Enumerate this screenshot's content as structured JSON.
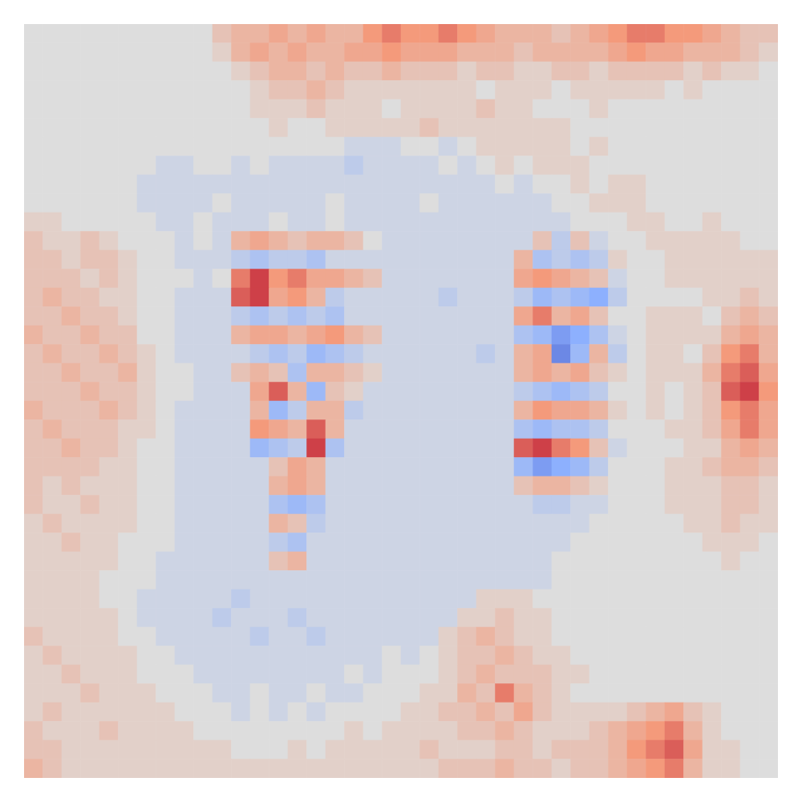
{
  "chart_data": {
    "type": "heatmap",
    "vlim": [
      -10,
      10
    ],
    "tick_labels": false,
    "values": [
      [
        0,
        0,
        0,
        0,
        0,
        0,
        0,
        0,
        0,
        0,
        2,
        3,
        3,
        4,
        3,
        4,
        3,
        3,
        5,
        6,
        5,
        5,
        6,
        5,
        4,
        3,
        3,
        3,
        2,
        3,
        4,
        5,
        6,
        6,
        5,
        5,
        4,
        3,
        2,
        2
      ],
      [
        0,
        0,
        0,
        0,
        0,
        0,
        0,
        0,
        0,
        0,
        1,
        3,
        4,
        3,
        4,
        3,
        3,
        4,
        4,
        5,
        4,
        4,
        4,
        3,
        3,
        3,
        2,
        3,
        3,
        3,
        3,
        4,
        5,
        4,
        4,
        3,
        3,
        3,
        2,
        1
      ],
      [
        0,
        0,
        0,
        0,
        0,
        0,
        0,
        0,
        0,
        0,
        0,
        1,
        2,
        3,
        3,
        2,
        3,
        2,
        2,
        3,
        2,
        2,
        2,
        1,
        2,
        2,
        1,
        1,
        2,
        2,
        1,
        2,
        2,
        2,
        2,
        1,
        2,
        1,
        1,
        0
      ],
      [
        0,
        0,
        0,
        0,
        0,
        0,
        0,
        0,
        0,
        0,
        0,
        0,
        1,
        2,
        2,
        3,
        2,
        1,
        1,
        1,
        1,
        1,
        1,
        1,
        0,
        1,
        1,
        1,
        0,
        1,
        1,
        1,
        1,
        1,
        0,
        1,
        0,
        0,
        0,
        0
      ],
      [
        0,
        0,
        0,
        0,
        0,
        0,
        0,
        0,
        0,
        0,
        0,
        0,
        1,
        1,
        1,
        2,
        1,
        1,
        1,
        0,
        1,
        1,
        1,
        1,
        2,
        1,
        1,
        0,
        0,
        0,
        1,
        0,
        0,
        0,
        0,
        0,
        0,
        0,
        0,
        0
      ],
      [
        0,
        0,
        0,
        0,
        0,
        0,
        0,
        0,
        0,
        0,
        0,
        0,
        0,
        1,
        0,
        0,
        1,
        1,
        1,
        1,
        1,
        2,
        1,
        1,
        1,
        1,
        1,
        1,
        1,
        0,
        0,
        0,
        0,
        0,
        0,
        0,
        0,
        0,
        0,
        0
      ],
      [
        0,
        0,
        0,
        0,
        0,
        0,
        0,
        0,
        0,
        0,
        0,
        0,
        0,
        0,
        0,
        0,
        0,
        -1,
        -1,
        -1,
        0,
        0,
        -1,
        0,
        1,
        1,
        1,
        1,
        1,
        0,
        1,
        0,
        0,
        0,
        0,
        0,
        0,
        0,
        0,
        0
      ],
      [
        0,
        0,
        0,
        0,
        0,
        0,
        0,
        -1,
        -1,
        0,
        0,
        -1,
        0,
        -1,
        -1,
        -1,
        -1,
        -2,
        -1,
        -1,
        -1,
        -1,
        0,
        -1,
        0,
        1,
        0,
        1,
        1,
        1,
        0,
        0,
        0,
        0,
        0,
        0,
        0,
        0,
        0,
        0
      ],
      [
        0,
        0,
        0,
        0,
        0,
        0,
        -1,
        -1,
        -1,
        -1,
        -1,
        -1,
        -1,
        -1,
        -1,
        -1,
        -1,
        -1,
        -1,
        -1,
        -1,
        -1,
        -1,
        -1,
        -1,
        0,
        -1,
        0,
        0,
        1,
        0,
        1,
        1,
        0,
        0,
        0,
        0,
        0,
        0,
        0
      ],
      [
        0,
        0,
        0,
        0,
        0,
        0,
        -1,
        -1,
        -1,
        -1,
        0,
        -1,
        -1,
        -1,
        -1,
        -1,
        0,
        -1,
        -1,
        -1,
        -1,
        0,
        -1,
        -1,
        -1,
        -1,
        -1,
        -1,
        0,
        0,
        1,
        1,
        1,
        0,
        0,
        0,
        0,
        0,
        0,
        0
      ],
      [
        1,
        1,
        0,
        0,
        0,
        0,
        0,
        -1,
        -1,
        0,
        -1,
        -1,
        -1,
        0,
        -1,
        -1,
        0,
        -1,
        -1,
        -1,
        -1,
        -1,
        -1,
        -1,
        -1,
        -1,
        -1,
        -1,
        -1,
        0,
        0,
        0,
        1,
        1,
        0,
        0,
        1,
        0,
        0,
        0
      ],
      [
        2,
        1,
        1,
        2,
        1,
        0,
        0,
        0,
        -1,
        0,
        -1,
        3,
        4,
        3,
        2,
        3,
        3,
        2,
        0,
        -1,
        -1,
        -1,
        -1,
        -1,
        -1,
        -1,
        -1,
        2,
        -2,
        2,
        -1,
        0,
        0,
        1,
        1,
        1,
        1,
        1,
        0,
        0
      ],
      [
        2,
        2,
        1,
        2,
        2,
        1,
        0,
        0,
        -1,
        -1,
        -1,
        -2,
        -3,
        -2,
        -2,
        -3,
        -1,
        -1,
        -1,
        -1,
        -1,
        -1,
        -1,
        -1,
        -1,
        -1,
        3,
        -3,
        -2,
        -3,
        -2,
        1,
        0,
        0,
        1,
        1,
        1,
        1,
        1,
        1
      ],
      [
        2,
        2,
        2,
        1,
        2,
        1,
        0,
        0,
        0,
        -1,
        0,
        6,
        8,
        5,
        6,
        4,
        4,
        3,
        2,
        -1,
        -1,
        -1,
        -1,
        -1,
        -1,
        -1,
        4,
        5,
        4,
        3,
        2,
        -1,
        0,
        0,
        1,
        1,
        1,
        1,
        1,
        1
      ],
      [
        2,
        3,
        2,
        2,
        1,
        1,
        0,
        0,
        -1,
        -1,
        -1,
        7,
        8,
        4,
        5,
        3,
        -2,
        -1,
        -1,
        -1,
        -1,
        -1,
        -2,
        -1,
        -1,
        -1,
        -2,
        -4,
        -3,
        -4,
        -5,
        -2,
        0,
        0,
        0,
        0,
        1,
        1,
        2,
        1
      ],
      [
        2,
        2,
        3,
        2,
        2,
        1,
        0,
        0,
        -1,
        -1,
        -1,
        -2,
        -3,
        -2,
        -3,
        -2,
        -3,
        -1,
        -1,
        -1,
        -1,
        -1,
        -1,
        -1,
        -1,
        -1,
        4,
        6,
        3,
        4,
        2,
        0,
        0,
        1,
        1,
        1,
        0,
        2,
        3,
        2
      ],
      [
        3,
        2,
        2,
        3,
        2,
        2,
        0,
        0,
        -1,
        -1,
        -1,
        3,
        4,
        4,
        3,
        4,
        5,
        3,
        2,
        -1,
        -1,
        -1,
        -1,
        -1,
        -1,
        -1,
        -3,
        -4,
        -6,
        -5,
        -3,
        -1,
        0,
        1,
        1,
        1,
        1,
        3,
        4,
        3
      ],
      [
        2,
        3,
        2,
        2,
        3,
        2,
        1,
        0,
        -1,
        -1,
        -1,
        -1,
        -2,
        -3,
        -2,
        -4,
        -3,
        -2,
        -1,
        -1,
        -1,
        -1,
        -1,
        -1,
        -2,
        -1,
        3,
        4,
        -7,
        -4,
        3,
        -2,
        0,
        1,
        1,
        0,
        2,
        5,
        6,
        3
      ],
      [
        2,
        2,
        3,
        2,
        2,
        3,
        1,
        0,
        0,
        -1,
        -1,
        2,
        3,
        2,
        -3,
        3,
        3,
        2,
        1,
        -1,
        -1,
        -1,
        -1,
        -1,
        -1,
        -1,
        3,
        4,
        3,
        4,
        2,
        1,
        0,
        1,
        1,
        1,
        3,
        6,
        7,
        4
      ],
      [
        2,
        2,
        2,
        3,
        2,
        2,
        1,
        0,
        0,
        -1,
        -1,
        -1,
        4,
        7,
        3,
        -4,
        2,
        1,
        -1,
        -1,
        -1,
        -1,
        -1,
        -1,
        -1,
        -1,
        -2,
        -3,
        -4,
        -3,
        -2,
        0,
        0,
        1,
        0,
        1,
        2,
        7,
        8,
        5
      ],
      [
        3,
        2,
        2,
        2,
        3,
        2,
        1,
        0,
        -1,
        -1,
        -1,
        -1,
        3,
        -4,
        -2,
        3,
        3,
        -2,
        -1,
        -1,
        -1,
        -1,
        -1,
        -1,
        -1,
        -1,
        3,
        5,
        4,
        4,
        3,
        1,
        0,
        1,
        0,
        1,
        2,
        5,
        6,
        4
      ],
      [
        2,
        3,
        2,
        2,
        2,
        1,
        1,
        0,
        -1,
        -1,
        -1,
        -1,
        5,
        4,
        3,
        7,
        3,
        -1,
        -1,
        -1,
        -1,
        -1,
        -1,
        -1,
        -1,
        -1,
        -3,
        -4,
        -3,
        -3,
        -2,
        0,
        0,
        0,
        1,
        1,
        2,
        4,
        6,
        4
      ],
      [
        2,
        2,
        3,
        2,
        2,
        1,
        0,
        0,
        -1,
        -1,
        -1,
        -1,
        -4,
        -3,
        -2,
        8,
        -3,
        -1,
        -1,
        -1,
        -1,
        -1,
        -1,
        -1,
        -1,
        -1,
        7,
        8,
        6,
        5,
        2,
        -1,
        0,
        0,
        0,
        1,
        1,
        3,
        4,
        3
      ],
      [
        2,
        2,
        2,
        2,
        1,
        1,
        0,
        0,
        -1,
        -1,
        -1,
        -1,
        -1,
        2,
        4,
        3,
        -1,
        -1,
        -1,
        -1,
        -1,
        -1,
        -1,
        -1,
        -1,
        -1,
        -4,
        -6,
        -5,
        -4,
        -2,
        0,
        0,
        0,
        1,
        1,
        2,
        3,
        3,
        2
      ],
      [
        2,
        1,
        2,
        1,
        1,
        1,
        0,
        0,
        -1,
        -1,
        -1,
        -1,
        -1,
        3,
        4,
        3,
        -1,
        -1,
        -1,
        -1,
        -1,
        -1,
        -1,
        -1,
        -1,
        -1,
        2,
        3,
        3,
        2,
        1,
        0,
        0,
        0,
        1,
        1,
        1,
        2,
        2,
        1
      ],
      [
        2,
        1,
        1,
        2,
        1,
        1,
        0,
        0,
        -1,
        -1,
        -1,
        -1,
        -1,
        -3,
        -4,
        -3,
        -1,
        -1,
        -1,
        -1,
        -1,
        -1,
        -1,
        -1,
        -1,
        -1,
        -1,
        -2,
        -2,
        -1,
        -1,
        0,
        0,
        0,
        1,
        1,
        1,
        2,
        2,
        1
      ],
      [
        1,
        2,
        1,
        1,
        1,
        1,
        0,
        0,
        -1,
        -1,
        -1,
        -1,
        -1,
        3,
        2,
        -2,
        -1,
        -1,
        -1,
        -1,
        -1,
        -1,
        -1,
        -1,
        -1,
        -1,
        -1,
        -1,
        -1,
        -1,
        0,
        0,
        0,
        0,
        0,
        1,
        1,
        2,
        1,
        1
      ],
      [
        1,
        1,
        2,
        1,
        1,
        0,
        0,
        0,
        -1,
        -1,
        -1,
        -1,
        -1,
        -2,
        -3,
        -1,
        -1,
        -1,
        -1,
        -1,
        -1,
        -1,
        -1,
        -1,
        -1,
        -1,
        -1,
        -1,
        -1,
        0,
        0,
        0,
        0,
        0,
        0,
        0,
        1,
        1,
        1,
        0
      ],
      [
        1,
        1,
        1,
        1,
        1,
        0,
        0,
        -1,
        -1,
        -1,
        -1,
        -1,
        -1,
        2,
        3,
        -1,
        -1,
        -1,
        -1,
        -1,
        -1,
        -1,
        -1,
        -1,
        -1,
        -1,
        -1,
        -1,
        0,
        0,
        0,
        0,
        0,
        0,
        0,
        0,
        0,
        1,
        0,
        0
      ],
      [
        1,
        1,
        1,
        1,
        0,
        0,
        0,
        -1,
        -1,
        -1,
        -1,
        -1,
        -1,
        -1,
        -1,
        -1,
        -1,
        -1,
        -1,
        -1,
        -1,
        -1,
        -1,
        -1,
        -1,
        -1,
        -1,
        -1,
        0,
        0,
        0,
        0,
        0,
        0,
        0,
        0,
        0,
        0,
        0,
        0
      ],
      [
        1,
        1,
        1,
        1,
        0,
        0,
        -1,
        -1,
        -1,
        -1,
        -1,
        -2,
        -1,
        -1,
        -1,
        -1,
        -1,
        -1,
        -1,
        -1,
        -1,
        -1,
        -1,
        -1,
        1,
        1,
        1,
        0,
        0,
        0,
        0,
        0,
        0,
        0,
        0,
        0,
        0,
        0,
        0,
        0
      ],
      [
        1,
        1,
        1,
        1,
        1,
        0,
        -1,
        -1,
        -1,
        -1,
        -2,
        -1,
        -1,
        -1,
        -2,
        -1,
        -1,
        -1,
        -1,
        -1,
        -1,
        -1,
        -1,
        1,
        1,
        2,
        1,
        1,
        0,
        0,
        0,
        0,
        0,
        0,
        0,
        0,
        0,
        0,
        0,
        0
      ],
      [
        2,
        1,
        1,
        1,
        1,
        0,
        0,
        -1,
        -1,
        -1,
        -1,
        -1,
        -2,
        -1,
        -1,
        -2,
        -1,
        -1,
        -1,
        -1,
        -1,
        -1,
        1,
        2,
        3,
        2,
        1,
        1,
        0,
        0,
        0,
        0,
        0,
        0,
        0,
        0,
        0,
        0,
        0,
        0
      ],
      [
        1,
        2,
        1,
        1,
        1,
        1,
        0,
        0,
        -1,
        -1,
        -1,
        -1,
        -1,
        -1,
        -1,
        -1,
        -1,
        -1,
        -1,
        0,
        -1,
        0,
        1,
        2,
        2,
        3,
        2,
        1,
        1,
        0,
        0,
        0,
        0,
        0,
        0,
        0,
        0,
        0,
        0,
        0
      ],
      [
        1,
        1,
        2,
        1,
        1,
        1,
        0,
        0,
        0,
        -1,
        -1,
        -1,
        -1,
        -1,
        -1,
        -1,
        -1,
        0,
        -1,
        0,
        0,
        0,
        1,
        2,
        3,
        2,
        2,
        2,
        1,
        1,
        0,
        0,
        0,
        0,
        0,
        0,
        0,
        0,
        0,
        0
      ],
      [
        1,
        1,
        1,
        2,
        1,
        1,
        1,
        0,
        0,
        0,
        -1,
        -1,
        0,
        -1,
        -1,
        0,
        -1,
        -1,
        0,
        0,
        0,
        1,
        1,
        3,
        2,
        6,
        3,
        2,
        1,
        0,
        0,
        0,
        0,
        0,
        0,
        0,
        0,
        0,
        0,
        0
      ],
      [
        1,
        2,
        1,
        1,
        1,
        1,
        1,
        1,
        0,
        0,
        0,
        -1,
        0,
        -1,
        0,
        -1,
        0,
        0,
        0,
        0,
        1,
        1,
        2,
        2,
        3,
        2,
        4,
        2,
        1,
        1,
        1,
        1,
        2,
        3,
        4,
        2,
        1,
        0,
        0,
        0
      ],
      [
        2,
        1,
        1,
        1,
        2,
        1,
        1,
        1,
        1,
        0,
        0,
        0,
        0,
        0,
        0,
        0,
        0,
        1,
        0,
        1,
        1,
        1,
        1,
        2,
        2,
        3,
        2,
        1,
        1,
        1,
        2,
        3,
        4,
        5,
        6,
        3,
        1,
        0,
        0,
        0
      ],
      [
        2,
        2,
        1,
        1,
        1,
        1,
        1,
        1,
        1,
        1,
        1,
        0,
        0,
        0,
        1,
        0,
        1,
        1,
        1,
        1,
        1,
        2,
        1,
        1,
        1,
        2,
        2,
        1,
        2,
        2,
        2,
        3,
        5,
        6,
        7,
        4,
        1,
        1,
        0,
        0
      ],
      [
        3,
        2,
        1,
        1,
        1,
        1,
        1,
        1,
        1,
        1,
        1,
        1,
        1,
        1,
        1,
        1,
        1,
        1,
        1,
        1,
        1,
        1,
        2,
        2,
        2,
        3,
        2,
        2,
        1,
        2,
        2,
        3,
        4,
        5,
        6,
        3,
        1,
        1,
        0,
        0
      ]
    ]
  }
}
